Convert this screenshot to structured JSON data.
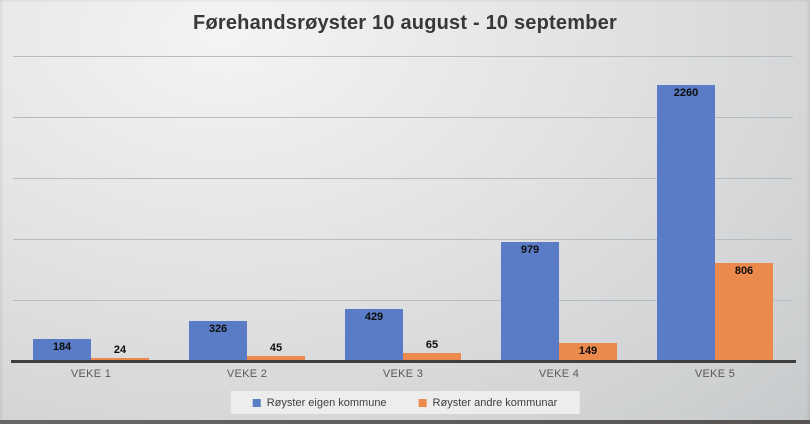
{
  "title": "Førehandsrøyster 10 august - 10 september",
  "chart_data": {
    "type": "bar",
    "title": "Førehandsrøyster 10 august - 10 september",
    "categories": [
      "VEKE 1",
      "VEKE 2",
      "VEKE 3",
      "VEKE 4",
      "VEKE 5"
    ],
    "series": [
      {
        "name": "Røyster eigen kommune",
        "color": "#5A7CC6",
        "values": [
          184,
          326,
          429,
          979,
          2260
        ]
      },
      {
        "name": "Røyster andre kommunar",
        "color": "#EC8A4D",
        "values": [
          24,
          45,
          65,
          149,
          806
        ]
      }
    ],
    "xlabel": "",
    "ylabel": "",
    "ylim": [
      0,
      2500
    ],
    "gridline_step": 500,
    "grid": true,
    "legend_position": "bottom",
    "data_labels": true
  },
  "colors": {
    "axis_line": "#3f3f3f",
    "gridline": "#b9bcbe",
    "category_text": "#595959",
    "title_text": "#383838",
    "legend_background": "#ededed"
  }
}
